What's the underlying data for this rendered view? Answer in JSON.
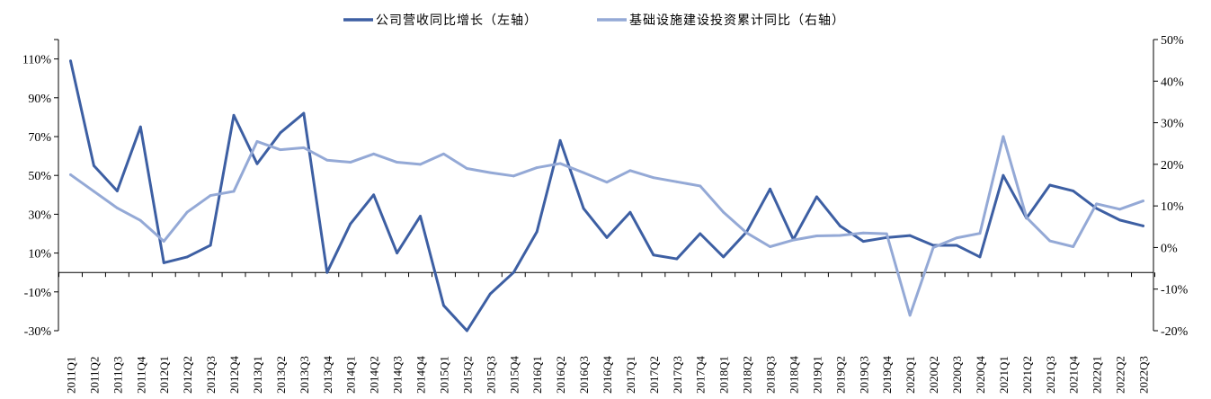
{
  "chart_data": {
    "type": "line",
    "title": "",
    "legend_position": "top-center",
    "categories": [
      "2011Q1",
      "2011Q2",
      "2011Q3",
      "2011Q4",
      "2012Q1",
      "2012Q2",
      "2012Q3",
      "2012Q4",
      "2013Q1",
      "2013Q2",
      "2013Q3",
      "2013Q4",
      "2014Q1",
      "2014Q2",
      "2014Q3",
      "2014Q4",
      "2015Q1",
      "2015Q2",
      "2015Q3",
      "2015Q4",
      "2016Q1",
      "2016Q2",
      "2016Q3",
      "2016Q4",
      "2017Q1",
      "2017Q2",
      "2017Q3",
      "2017Q4",
      "2018Q1",
      "2018Q2",
      "2018Q3",
      "2018Q4",
      "2019Q1",
      "2019Q2",
      "2019Q3",
      "2019Q4",
      "2020Q1",
      "2020Q2",
      "2020Q3",
      "2020Q4",
      "2021Q1",
      "2021Q2",
      "2021Q3",
      "2021Q4",
      "2022Q1",
      "2022Q2",
      "2022Q3"
    ],
    "left_axis": {
      "min": -30,
      "max": 120,
      "ticks": [
        110,
        90,
        70,
        50,
        30,
        10,
        -10,
        -30
      ],
      "tick_labels": [
        "110%",
        "90%",
        "70%",
        "50%",
        "30%",
        "10%",
        "-10%",
        "-30%"
      ]
    },
    "right_axis": {
      "min": -20,
      "max": 50,
      "ticks": [
        50,
        40,
        30,
        20,
        10,
        0,
        -10,
        -20
      ],
      "tick_labels": [
        "50%",
        "40%",
        "30%",
        "20%",
        "10%",
        "0%",
        "-10%",
        "-20%"
      ]
    },
    "series": [
      {
        "name": "公司营收同比增长（左轴）",
        "axis": "left",
        "color": "#3D5FA3",
        "values": [
          109,
          55,
          42,
          75,
          5,
          8,
          14,
          81,
          56,
          72,
          82,
          0,
          25,
          40,
          10,
          29,
          -17,
          -30,
          -11,
          0,
          21,
          68,
          33,
          18,
          31,
          9,
          7,
          20,
          8,
          21,
          43,
          17,
          39,
          24,
          16,
          18,
          19,
          14,
          14,
          8,
          50,
          28,
          45,
          42,
          33,
          27,
          24
        ]
      },
      {
        "name": "基础设施建设投资累计同比（右轴）",
        "axis": "right",
        "color": "#94A9D6",
        "values": [
          17.5,
          13.5,
          9.5,
          6.5,
          1.5,
          8.5,
          12.5,
          13.5,
          25.5,
          23.5,
          24,
          21,
          20.5,
          22.5,
          20.5,
          20,
          22.5,
          19,
          18,
          17.2,
          19.2,
          20.2,
          18,
          15.7,
          18.5,
          16.8,
          15.8,
          14.8,
          8.5,
          3.5,
          0.2,
          1.8,
          2.8,
          2.9,
          3.5,
          3.3,
          -16.3,
          0,
          2.3,
          3.4,
          26.7,
          7.2,
          1.6,
          0.2,
          10.5,
          9.2,
          11.2
        ]
      }
    ]
  }
}
